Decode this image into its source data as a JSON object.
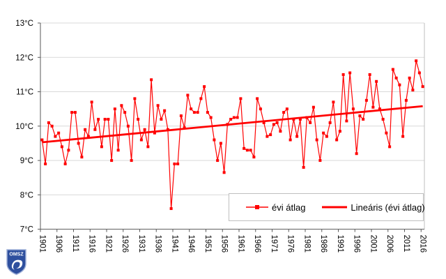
{
  "chart_data": {
    "type": "line",
    "title": "",
    "xlabel": "",
    "ylabel": "",
    "ylim": [
      7,
      13
    ],
    "grid": true,
    "legend_position": "inside-bottom-right",
    "yticks": [
      {
        "value": 13,
        "label": "13°C"
      },
      {
        "value": 12,
        "label": "12°C"
      },
      {
        "value": 11,
        "label": "11°C"
      },
      {
        "value": 10,
        "label": "10°C"
      },
      {
        "value": 9,
        "label": "9°C"
      },
      {
        "value": 8,
        "label": "8°C"
      },
      {
        "value": 7,
        "label": "7°C"
      }
    ],
    "xtick_years": [
      1901,
      1906,
      1911,
      1916,
      1921,
      1926,
      1931,
      1936,
      1941,
      1946,
      1951,
      1956,
      1961,
      1966,
      1971,
      1976,
      1981,
      1986,
      1991,
      1996,
      2001,
      2006,
      2011,
      2016
    ],
    "x": [
      1901,
      1902,
      1903,
      1904,
      1905,
      1906,
      1907,
      1908,
      1909,
      1910,
      1911,
      1912,
      1913,
      1914,
      1915,
      1916,
      1917,
      1918,
      1919,
      1920,
      1921,
      1922,
      1923,
      1924,
      1925,
      1926,
      1927,
      1928,
      1929,
      1930,
      1931,
      1932,
      1933,
      1934,
      1935,
      1936,
      1937,
      1938,
      1939,
      1940,
      1941,
      1942,
      1943,
      1944,
      1945,
      1946,
      1947,
      1948,
      1949,
      1950,
      1951,
      1952,
      1953,
      1954,
      1955,
      1956,
      1957,
      1958,
      1959,
      1960,
      1961,
      1962,
      1963,
      1964,
      1965,
      1966,
      1967,
      1968,
      1969,
      1970,
      1971,
      1972,
      1973,
      1974,
      1975,
      1976,
      1977,
      1978,
      1979,
      1980,
      1981,
      1982,
      1983,
      1984,
      1985,
      1986,
      1987,
      1988,
      1989,
      1990,
      1991,
      1992,
      1993,
      1994,
      1995,
      1996,
      1997,
      1998,
      1999,
      2000,
      2001,
      2002,
      2003,
      2004,
      2005,
      2006,
      2007,
      2008,
      2009,
      2010,
      2011,
      2012,
      2013,
      2014,
      2015,
      2016
    ],
    "series": [
      {
        "name": "évi átlag",
        "color": "#ff0000",
        "marker": "square",
        "values": [
          9.6,
          8.9,
          10.1,
          10.0,
          9.7,
          9.8,
          9.4,
          8.9,
          9.3,
          10.4,
          10.4,
          9.5,
          9.1,
          9.9,
          9.7,
          10.7,
          9.9,
          10.2,
          9.4,
          10.2,
          10.2,
          9.0,
          10.5,
          9.3,
          10.6,
          10.4,
          10.0,
          9.0,
          10.8,
          10.2,
          9.6,
          9.9,
          9.4,
          11.35,
          9.8,
          10.6,
          10.2,
          10.45,
          9.9,
          7.6,
          8.9,
          8.9,
          10.3,
          9.95,
          10.9,
          10.5,
          10.4,
          10.4,
          10.8,
          11.15,
          10.4,
          10.25,
          9.6,
          9.0,
          9.5,
          8.65,
          10.05,
          10.2,
          10.25,
          10.25,
          10.8,
          9.35,
          9.3,
          9.3,
          9.1,
          10.8,
          10.5,
          10.1,
          9.7,
          9.75,
          10.05,
          10.1,
          9.85,
          10.4,
          10.5,
          9.6,
          10.2,
          9.7,
          10.2,
          8.8,
          10.25,
          10.1,
          10.55,
          9.6,
          9.0,
          9.8,
          9.7,
          10.1,
          10.7,
          9.6,
          9.85,
          11.5,
          10.15,
          11.55,
          10.5,
          9.2,
          10.3,
          10.2,
          10.75,
          11.5,
          10.55,
          11.3,
          10.5,
          10.2,
          9.8,
          9.4,
          11.65,
          11.4,
          11.2,
          9.7,
          10.75,
          11.4,
          11.05,
          11.9,
          11.55,
          11.15
        ]
      },
      {
        "name": "Lineáris (évi átlag)",
        "color": "#ff0000",
        "type": "linear-trend",
        "start_value": 9.53,
        "end_value": 10.58
      }
    ]
  },
  "legend": {
    "series_label": "évi átlag",
    "trend_label": "Lineáris (évi átlag)"
  },
  "logo": {
    "text": "OMSZ",
    "shield_color": "#2e4f9e",
    "accent_color": "#ffffff"
  },
  "style_colors": {
    "gridline": "#d9d9d9",
    "axis": "#595959",
    "tick_text": "#000000",
    "plot_border": "#bfbfbf"
  }
}
